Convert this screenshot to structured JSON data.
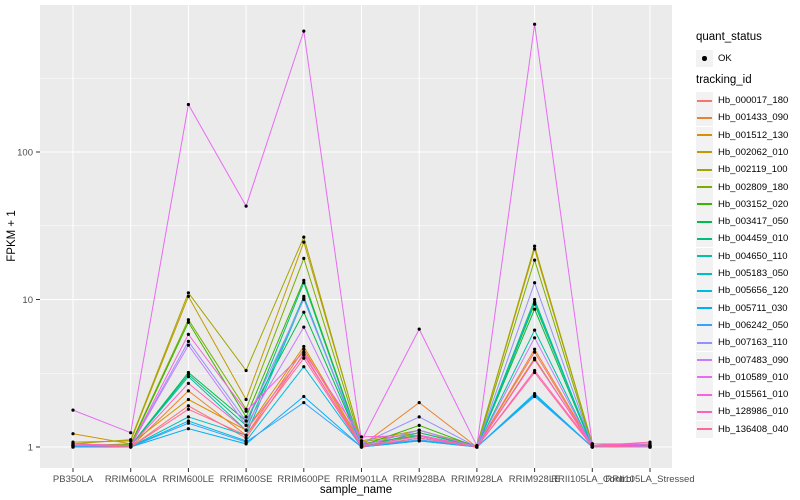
{
  "figure": {
    "bg": "#FFFFFF",
    "panel_bg": "#EBEBEB",
    "grid_color": "#FFFFFF",
    "tick_color": "#333333",
    "tick_label_color": "#4D4D4D",
    "legend_key_bg": "#F2F2F2",
    "point_color": "#000000"
  },
  "chart_data": {
    "type": "line",
    "title": "",
    "xlabel": "sample_name",
    "ylabel": "FPKM + 1",
    "yscale": "log10",
    "yticks": [
      1,
      10,
      100
    ],
    "yticks_minor": [
      3.162,
      31.62,
      316.2
    ],
    "ylim_displayed": [
      0.72,
      1030
    ],
    "grid": true,
    "legend_position": "right",
    "categories": [
      "PB350LA",
      "RRIM600LA",
      "RRIM600LE",
      "RRIM600SE",
      "RRIM600PE",
      "RRIM901LA",
      "RRIM928BA",
      "RRIM928LA",
      "RRIM928LE",
      "RRII105LA_Control",
      "RRII105LA_Stressed"
    ],
    "legend": {
      "quant_status_title": "quant_status",
      "quant_status_items": [
        {
          "label": "OK",
          "marker": "point"
        }
      ],
      "tracking_title": "tracking_id"
    },
    "series": [
      {
        "name": "Hb_000017_180",
        "color": "#F8766D",
        "values": [
          1.02,
          1.0,
          1.9,
          1.15,
          4.3,
          1.0,
          1.15,
          1.0,
          4.4,
          1.0,
          1.02
        ]
      },
      {
        "name": "Hb_001433_090",
        "color": "#EA8331",
        "values": [
          1.05,
          1.0,
          2.4,
          1.2,
          4.6,
          1.02,
          2.0,
          1.0,
          4.6,
          1.02,
          1.0
        ]
      },
      {
        "name": "Hb_001512_130",
        "color": "#D89000",
        "values": [
          1.23,
          1.05,
          2.1,
          1.3,
          4.8,
          1.05,
          1.2,
          1.0,
          4.0,
          1.0,
          1.0
        ]
      },
      {
        "name": "Hb_002062_010",
        "color": "#C09B00",
        "values": [
          1.08,
          1.1,
          10.5,
          2.1,
          24.5,
          1.1,
          1.3,
          1.02,
          22.0,
          1.05,
          1.02
        ]
      },
      {
        "name": "Hb_002119_100",
        "color": "#A3A500",
        "values": [
          1.05,
          1.12,
          11.1,
          3.3,
          26.5,
          1.08,
          1.25,
          1.02,
          23.0,
          1.05,
          1.03
        ]
      },
      {
        "name": "Hb_002809_180",
        "color": "#7CAE00",
        "values": [
          1.02,
          1.05,
          7.3,
          1.8,
          19.0,
          1.05,
          1.2,
          1.0,
          18.5,
          1.02,
          1.0
        ]
      },
      {
        "name": "Hb_003152_020",
        "color": "#39B600",
        "values": [
          1.02,
          1.03,
          7.0,
          1.6,
          13.5,
          1.02,
          1.4,
          1.0,
          9.3,
          1.02,
          1.0
        ]
      },
      {
        "name": "Hb_003417_050",
        "color": "#00BB4E",
        "values": [
          1.0,
          1.02,
          3.2,
          1.5,
          8.2,
          1.02,
          1.3,
          1.0,
          8.6,
          1.0,
          1.0
        ]
      },
      {
        "name": "Hb_004459_010",
        "color": "#00BF7D",
        "values": [
          1.02,
          1.02,
          3.1,
          1.4,
          13.0,
          1.0,
          1.25,
          1.0,
          10.0,
          1.0,
          1.0
        ]
      },
      {
        "name": "Hb_004650_110",
        "color": "#00C1A3",
        "values": [
          1.0,
          1.02,
          3.0,
          1.3,
          10.5,
          1.0,
          1.2,
          1.0,
          6.2,
          1.0,
          1.0
        ]
      },
      {
        "name": "Hb_005183_050",
        "color": "#00BFC4",
        "values": [
          1.0,
          1.0,
          1.6,
          1.2,
          10.2,
          1.0,
          1.15,
          1.0,
          9.6,
          1.0,
          1.02
        ]
      },
      {
        "name": "Hb_005656_120",
        "color": "#00BAE0",
        "values": [
          1.02,
          1.0,
          1.5,
          1.1,
          3.5,
          1.0,
          1.1,
          1.0,
          2.3,
          1.0,
          1.05
        ]
      },
      {
        "name": "Hb_005711_030",
        "color": "#00B0F6",
        "values": [
          1.0,
          1.0,
          1.33,
          1.05,
          2.2,
          1.0,
          1.1,
          1.0,
          2.25,
          1.0,
          1.02
        ]
      },
      {
        "name": "Hb_006242_050",
        "color": "#35A2FF",
        "values": [
          1.02,
          1.0,
          1.45,
          1.08,
          2.0,
          1.0,
          1.12,
          1.0,
          2.2,
          1.0,
          1.0
        ]
      },
      {
        "name": "Hb_007163_110",
        "color": "#9590FF",
        "values": [
          1.02,
          1.02,
          5.2,
          1.5,
          10.0,
          1.05,
          1.6,
          1.0,
          13.0,
          1.02,
          1.0
        ]
      },
      {
        "name": "Hb_007483_090",
        "color": "#C77CFF",
        "values": [
          1.05,
          1.02,
          4.9,
          1.4,
          6.5,
          1.02,
          1.3,
          1.0,
          5.5,
          1.0,
          1.0
        ]
      },
      {
        "name": "Hb_010589_010",
        "color": "#E76BF3",
        "values": [
          1.78,
          1.25,
          210,
          43,
          660,
          1.1,
          6.3,
          1.02,
          735,
          1.05,
          1.05
        ]
      },
      {
        "name": "Hb_015561_010",
        "color": "#FA62DB",
        "values": [
          1.05,
          1.02,
          5.8,
          1.75,
          4.4,
          1.17,
          1.2,
          1.0,
          3.9,
          1.02,
          1.05
        ]
      },
      {
        "name": "Hb_128986_010",
        "color": "#FF62BC",
        "values": [
          1.05,
          1.02,
          2.7,
          1.3,
          4.2,
          1.02,
          1.18,
          1.0,
          3.3,
          1.02,
          1.08
        ]
      },
      {
        "name": "Hb_136408_040",
        "color": "#FF6A98",
        "values": [
          1.03,
          1.0,
          1.8,
          1.2,
          4.0,
          1.0,
          1.15,
          1.0,
          3.2,
          1.0,
          1.02
        ]
      }
    ]
  }
}
